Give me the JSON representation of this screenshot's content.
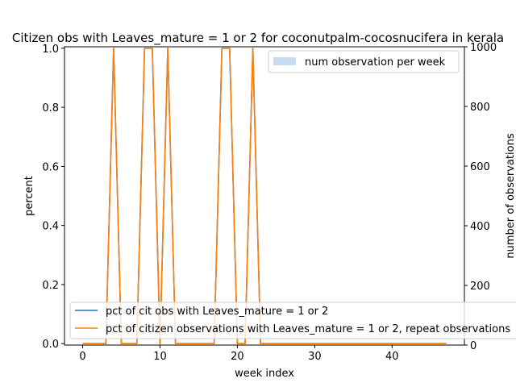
{
  "chart_data": {
    "type": "line",
    "title": "Citizen obs with Leaves_mature = 1 or 2 for coconutpalm-cocosnucifera in kerala",
    "xlabel": "week index",
    "ylabel": "percent",
    "ylabel_right": "number of observations",
    "xlim": [
      -2.35,
      49.35
    ],
    "ylim": [
      -0.005,
      1.005
    ],
    "ylim_right": [
      0,
      1000
    ],
    "xticks": [
      "0",
      "10",
      "20",
      "30",
      "40"
    ],
    "yticks": [
      "0.0",
      "0.2",
      "0.4",
      "0.6",
      "0.8",
      "1.0"
    ],
    "yticks_right": [
      "0",
      "200",
      "400",
      "600",
      "800",
      "1000"
    ],
    "x": [
      0,
      1,
      2,
      3,
      4,
      5,
      6,
      7,
      8,
      9,
      10,
      11,
      12,
      13,
      14,
      15,
      16,
      17,
      18,
      19,
      20,
      21,
      22,
      23,
      24,
      25,
      26,
      27,
      28,
      29,
      30,
      31,
      32,
      33,
      34,
      35,
      36,
      37,
      38,
      39,
      40,
      41,
      42,
      43,
      44,
      45,
      46,
      47
    ],
    "series": [
      {
        "name": "pct of cit obs with Leaves_mature = 1 or 2",
        "color": "#1f77b4",
        "values": [
          0,
          0,
          0,
          0,
          1,
          0,
          0,
          0,
          1,
          1,
          0,
          1,
          0,
          0,
          0,
          0,
          0,
          0,
          1,
          1,
          0,
          0,
          1,
          0,
          0,
          0,
          0,
          0,
          0,
          0,
          0,
          0,
          0,
          0,
          0,
          0,
          0,
          0,
          0,
          0,
          0,
          0,
          0,
          0,
          0,
          0,
          0,
          0
        ]
      },
      {
        "name": "pct of citizen observations with Leaves_mature = 1 or 2, repeat observations",
        "color": "#ff7f0e",
        "values": [
          0,
          0,
          0,
          0,
          1,
          0,
          0,
          0,
          1,
          1,
          0,
          1,
          0,
          0,
          0,
          0,
          0,
          0,
          1,
          1,
          0,
          0,
          1,
          0,
          0,
          0,
          0,
          0,
          0,
          0,
          0,
          0,
          0,
          0,
          0,
          0,
          0,
          0,
          0,
          0,
          0,
          0,
          0,
          0,
          0,
          0,
          0,
          0
        ]
      }
    ],
    "bars": {
      "name": "num observation per week",
      "color": "#c6dbef",
      "values": [
        0,
        0,
        0,
        0,
        1,
        0,
        0,
        0,
        1,
        1,
        0,
        1,
        0,
        0,
        0,
        0,
        0,
        0,
        1,
        1,
        0,
        0,
        1,
        0,
        0,
        0,
        0,
        0,
        0,
        0,
        0,
        0,
        0,
        0,
        0,
        0,
        0,
        0,
        0,
        0,
        0,
        0,
        0,
        0,
        0,
        0,
        0,
        0
      ]
    },
    "legend_top_right": "upper right",
    "legend_bottom": "lower left"
  }
}
